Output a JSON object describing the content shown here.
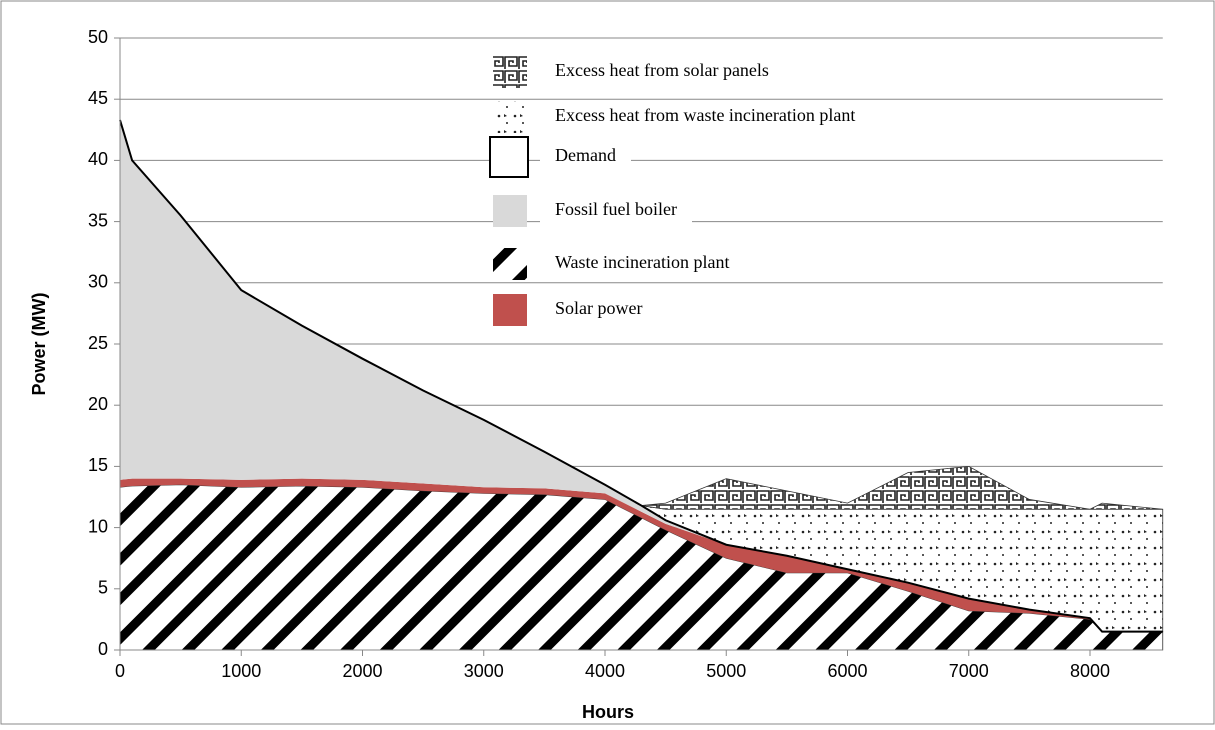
{
  "chart_data": {
    "type": "stacked-area",
    "x_label": "Hours",
    "y_label": "Power (MW)",
    "x": [
      0,
      100,
      500,
      1000,
      1500,
      2000,
      2500,
      3000,
      3500,
      4000,
      4300,
      4500,
      5000,
      5500,
      6000,
      6500,
      7000,
      7500,
      8000,
      8100,
      8600
    ],
    "series": [
      {
        "name": "Excess heat from solar panels",
        "kind": "area",
        "pattern": "greek",
        "color": "#555555",
        "values": [
          0,
          0,
          0,
          0,
          0,
          0,
          0,
          0,
          0,
          0,
          0,
          0.5,
          2.5,
          1.5,
          0.5,
          3.0,
          3.5,
          0.8,
          0,
          0.5,
          0
        ]
      },
      {
        "name": "Excess heat from waste incineration plant",
        "kind": "area",
        "pattern": "dots",
        "color": "#333333",
        "values": [
          0,
          0,
          0,
          0,
          0,
          0,
          0,
          0,
          0,
          0,
          0,
          0.9,
          2.9,
          3.8,
          4.9,
          6.0,
          7.3,
          8.2,
          8.9,
          10.0,
          10.0
        ]
      },
      {
        "name": "Demand",
        "kind": "line",
        "color": "#000000",
        "values": [
          43.3,
          40,
          35.5,
          29.4,
          26.5,
          23.8,
          21.2,
          18.8,
          16.2,
          13.5,
          11.8,
          10.6,
          8.6,
          7.7,
          6.6,
          5.5,
          4.2,
          3.3,
          2.6,
          1.5,
          1.5
        ]
      },
      {
        "name": "Fossil fuel boiler",
        "kind": "area",
        "pattern": "solid",
        "color": "#d9d9d9",
        "values": [
          29.4,
          26.0,
          21.5,
          15.5,
          12.5,
          9.9,
          7.6,
          5.5,
          3.0,
          0.7,
          0.5,
          0.3,
          0,
          0,
          0,
          0,
          0,
          0,
          0,
          0,
          0
        ]
      },
      {
        "name": "Waste incineration plant",
        "kind": "area",
        "pattern": "diagonal",
        "color": "#000000",
        "values": [
          13.3,
          13.4,
          13.5,
          13.3,
          13.4,
          13.3,
          13.0,
          12.8,
          12.7,
          12.3,
          10.8,
          9.8,
          7.5,
          6.3,
          6.3,
          4.8,
          3.2,
          3.0,
          2.5,
          1.5,
          1.5
        ]
      },
      {
        "name": "Solar power",
        "kind": "area",
        "pattern": "solid",
        "color": "#c0504d",
        "values": [
          0.6,
          0.6,
          0.5,
          0.6,
          0.6,
          0.6,
          0.6,
          0.5,
          0.5,
          0.5,
          0.5,
          0.5,
          1.1,
          1.4,
          0.3,
          0.7,
          1.0,
          0.3,
          0.1,
          0,
          0
        ]
      }
    ],
    "stack_order": [
      4,
      5,
      3,
      1,
      0
    ],
    "xlim": [
      0,
      8600
    ],
    "xticks": [
      0,
      1000,
      2000,
      3000,
      4000,
      5000,
      6000,
      7000,
      8000
    ],
    "ylim": [
      0,
      50
    ],
    "yticks": [
      0,
      5,
      10,
      15,
      20,
      25,
      30,
      35,
      40,
      45,
      50
    ],
    "grid": true
  }
}
